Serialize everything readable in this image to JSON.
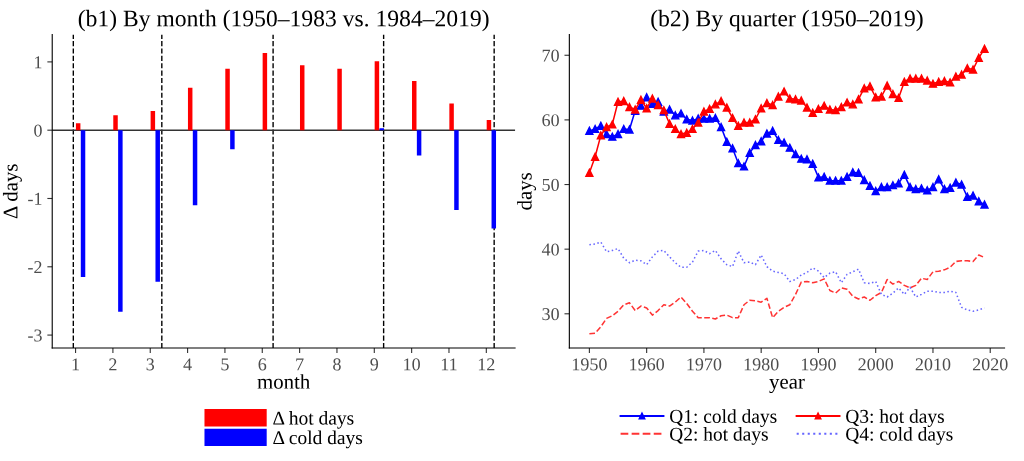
{
  "chart_data": [
    {
      "type": "bar",
      "title": "(b1) By month (1950–1983 vs. 1984–2019)",
      "xlabel": "month",
      "ylabel": "Δ days",
      "x": [
        1,
        2,
        3,
        4,
        5,
        6,
        7,
        8,
        9,
        10,
        11,
        12
      ],
      "series": [
        {
          "name": "Δ hot days",
          "color": "#ff0000",
          "values": [
            0.1,
            0.22,
            0.28,
            0.62,
            0.9,
            1.13,
            0.95,
            0.9,
            1.01,
            0.72,
            0.39,
            0.15
          ]
        },
        {
          "name": "Δ cold days",
          "color": "#0000ff",
          "values": [
            -2.15,
            -2.66,
            -2.22,
            -1.1,
            -0.28,
            0.0,
            0.0,
            0.0,
            0.03,
            -0.37,
            -1.17,
            -1.44
          ]
        }
      ],
      "xlim": [
        0.375,
        12.77
      ],
      "xticks": [
        1,
        2,
        3,
        4,
        5,
        6,
        7,
        8,
        9,
        10,
        11,
        12
      ],
      "ylim": [
        -3.19,
        1.4
      ],
      "yticks": [
        -3,
        -2,
        -1,
        0,
        1
      ],
      "ref_lines": [
        {
          "axis": "x",
          "value": 0.94,
          "color": "#000000",
          "line_style": "dashed"
        },
        {
          "axis": "x",
          "value": 3.31,
          "color": "#000000",
          "line_style": "dashed"
        },
        {
          "axis": "x",
          "value": 6.29,
          "color": "#000000",
          "line_style": "dashed"
        },
        {
          "axis": "x",
          "value": 9.25,
          "color": "#000000",
          "line_style": "dashed"
        },
        {
          "axis": "x",
          "value": 12.21,
          "color": "#000000",
          "line_style": "dashed"
        },
        {
          "axis": "y",
          "value": 0,
          "color": "#333333",
          "line_style": "solid"
        }
      ],
      "grid": false,
      "legend": "bottom"
    },
    {
      "type": "line",
      "title": "(b2) By quarter (1950–2019)",
      "xlabel": "year",
      "ylabel": "days",
      "x": [
        1950,
        1951,
        1952,
        1953,
        1954,
        1955,
        1956,
        1957,
        1958,
        1959,
        1960,
        1961,
        1962,
        1963,
        1964,
        1965,
        1966,
        1967,
        1968,
        1969,
        1970,
        1971,
        1972,
        1973,
        1974,
        1975,
        1976,
        1977,
        1978,
        1979,
        1980,
        1981,
        1982,
        1983,
        1984,
        1985,
        1986,
        1987,
        1988,
        1989,
        1990,
        1991,
        1992,
        1993,
        1994,
        1995,
        1996,
        1997,
        1998,
        1999,
        2000,
        2001,
        2002,
        2003,
        2004,
        2005,
        2006,
        2007,
        2008,
        2009,
        2010,
        2011,
        2012,
        2013,
        2014,
        2015,
        2016,
        2017,
        2018,
        2019
      ],
      "series": [
        {
          "name": "Q1: cold days",
          "color": "#0000ff",
          "marker": "triangle",
          "line_style": "solid",
          "values": [
            58.3,
            58.6,
            59.1,
            57.8,
            57.4,
            57.8,
            58.6,
            58.5,
            61.4,
            62.2,
            63.5,
            62.5,
            62.8,
            61.3,
            61.6,
            60.7,
            61.0,
            60.1,
            59.9,
            60.2,
            60.2,
            60.2,
            60.3,
            58.9,
            56.6,
            55.6,
            53.3,
            52.8,
            54.9,
            56.1,
            56.7,
            57.9,
            58.3,
            56.9,
            56.5,
            55.7,
            54.7,
            54.0,
            53.9,
            53.2,
            51.1,
            51.2,
            50.6,
            50.6,
            50.6,
            51.2,
            51.9,
            51.8,
            50.7,
            49.8,
            49.0,
            49.6,
            49.6,
            49.9,
            50.2,
            51.5,
            49.6,
            49.3,
            49.4,
            49.1,
            49.6,
            50.8,
            49.3,
            49.5,
            50.3,
            50.0,
            48.1,
            48.3,
            47.4,
            46.9
          ]
        },
        {
          "name": "Q2: hot days",
          "color": "#ff3333",
          "marker": "none",
          "line_style": "dashed",
          "values": [
            26.9,
            27.0,
            28.0,
            29.3,
            29.7,
            30.4,
            31.4,
            31.7,
            30.5,
            31.2,
            30.9,
            29.8,
            30.5,
            31.4,
            31.2,
            31.8,
            32.6,
            31.6,
            30.4,
            29.4,
            29.4,
            29.4,
            29.2,
            29.7,
            29.8,
            29.4,
            29.4,
            31.4,
            32.1,
            32.0,
            31.8,
            32.4,
            29.4,
            30.4,
            31.0,
            31.4,
            33.0,
            34.9,
            35.0,
            34.8,
            35.0,
            35.4,
            33.6,
            33.2,
            34.0,
            33.8,
            32.7,
            32.3,
            32.6,
            32.1,
            32.8,
            33.3,
            35.3,
            34.6,
            35.0,
            34.4,
            34.0,
            34.4,
            35.5,
            35.3,
            36.5,
            36.6,
            36.8,
            37.2,
            38.1,
            38.2,
            38.2,
            38.1,
            39.1,
            38.7
          ]
        },
        {
          "name": "Q3: hot days",
          "color": "#ff0000",
          "marker": "triangle",
          "line_style": "solid",
          "values": [
            51.8,
            54.3,
            57.6,
            58.9,
            59.3,
            62.8,
            62.9,
            62.0,
            61.6,
            63.1,
            61.8,
            63.3,
            62.3,
            61.5,
            59.4,
            58.6,
            57.8,
            58.0,
            58.6,
            59.6,
            61.3,
            61.7,
            62.4,
            62.9,
            61.9,
            60.3,
            59.1,
            59.6,
            59.6,
            60.1,
            61.8,
            62.6,
            62.3,
            63.6,
            64.4,
            63.3,
            63.2,
            63.0,
            61.9,
            61.1,
            61.7,
            62.2,
            61.6,
            61.5,
            62.0,
            62.7,
            62.4,
            63.2,
            64.9,
            65.2,
            63.5,
            63.6,
            65.3,
            64.0,
            63.4,
            65.9,
            66.4,
            66.4,
            66.4,
            66.1,
            65.6,
            65.9,
            66.0,
            65.8,
            66.7,
            67.0,
            68.0,
            67.8,
            69.6,
            71.0
          ]
        },
        {
          "name": "Q4: cold days",
          "color": "#6666ff",
          "marker": "none",
          "line_style": "dotted",
          "values": [
            40.7,
            40.8,
            41.1,
            39.6,
            39.8,
            40.1,
            38.6,
            37.9,
            38.3,
            38.2,
            37.6,
            38.8,
            39.7,
            39.8,
            38.8,
            37.9,
            37.2,
            37.2,
            38.0,
            39.7,
            39.8,
            39.3,
            39.8,
            38.5,
            37.6,
            37.3,
            39.7,
            37.9,
            38.0,
            37.6,
            39.1,
            37.3,
            36.6,
            36.4,
            36.2,
            35.0,
            35.3,
            36.0,
            36.4,
            37.1,
            36.6,
            35.6,
            36.3,
            36.5,
            34.8,
            36.1,
            36.5,
            36.9,
            34.8,
            34.7,
            35.0,
            33.0,
            32.6,
            33.2,
            34.0,
            33.0,
            34.1,
            32.6,
            33.0,
            33.5,
            33.5,
            33.3,
            33.3,
            33.5,
            33.3,
            31.0,
            30.6,
            30.4,
            30.6,
            30.9
          ]
        }
      ],
      "xlim": [
        1946.5,
        2022.5
      ],
      "xticks": [
        1950,
        1960,
        1970,
        1980,
        1990,
        2000,
        2010,
        2020
      ],
      "ylim": [
        24.7,
        73.2
      ],
      "yticks": [
        30,
        40,
        50,
        60,
        70
      ],
      "grid": false,
      "legend": "bottom"
    }
  ]
}
